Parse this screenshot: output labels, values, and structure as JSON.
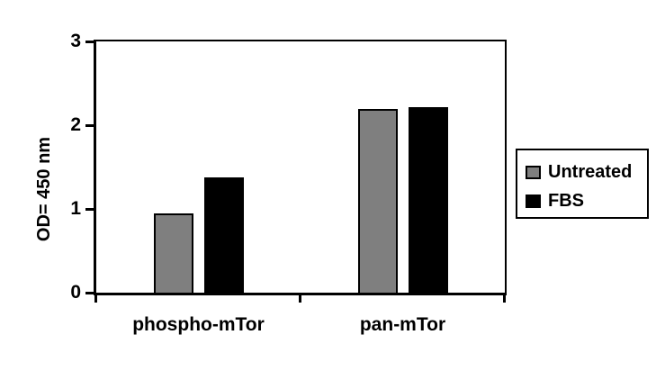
{
  "figure": {
    "background": "#ffffff",
    "axis_color": "#000000"
  },
  "chart_data": {
    "type": "bar",
    "title": "",
    "categories": [
      "phospho-mTor",
      "pan-mTor"
    ],
    "series": [
      {
        "name": "Untreated",
        "color": "#7f7f7f",
        "border_color": "#000000",
        "values": [
          0.95,
          2.19
        ]
      },
      {
        "name": "FBS",
        "color": "#000000",
        "border_color": "#000000",
        "values": [
          1.38,
          2.22
        ]
      }
    ],
    "xlabel": "",
    "ylabel": "OD= 450 nm",
    "ylim": [
      0,
      3
    ],
    "yticks": [
      "0",
      "1",
      "2",
      "3"
    ],
    "grid": false,
    "legend": {
      "position": "right",
      "entries": [
        "Untreated",
        "FBS"
      ]
    }
  }
}
